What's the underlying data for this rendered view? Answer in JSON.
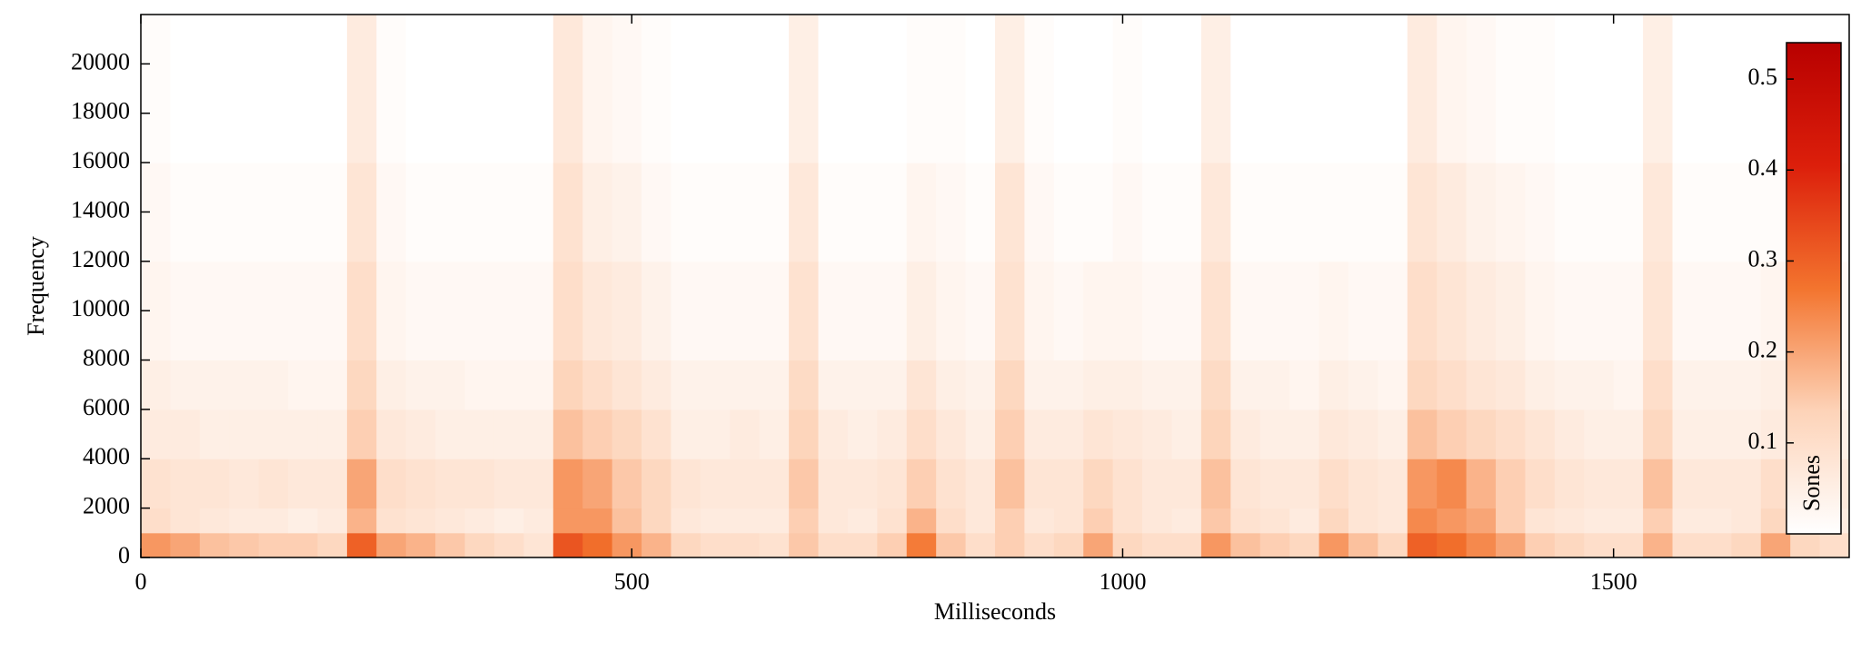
{
  "chart_data": {
    "type": "heatmap",
    "xlabel": "Milliseconds",
    "ylabel": "Frequency",
    "colorbar_label": "Sones",
    "xlim": [
      0,
      1740
    ],
    "ylim": [
      0,
      22000
    ],
    "clim": [
      0,
      0.54
    ],
    "xticks": [
      0,
      500,
      1000,
      1500
    ],
    "yticks": [
      0,
      2000,
      4000,
      6000,
      8000,
      10000,
      12000,
      14000,
      16000,
      18000,
      20000
    ],
    "colorbar_ticks": [
      0.1,
      0.2,
      0.3,
      0.4,
      0.5
    ],
    "colormap": [
      "#ffffff",
      "#fdd3b8",
      "#f3742e",
      "#dc1f0b",
      "#b80000"
    ],
    "x_bins": [
      0,
      30,
      60,
      90,
      120,
      150,
      180,
      210,
      240,
      270,
      300,
      330,
      360,
      390,
      420,
      450,
      480,
      510,
      540,
      570,
      600,
      630,
      660,
      690,
      720,
      750,
      780,
      810,
      840,
      870,
      900,
      930,
      960,
      990,
      1020,
      1050,
      1080,
      1110,
      1140,
      1170,
      1200,
      1230,
      1260,
      1290,
      1320,
      1350,
      1380,
      1410,
      1440,
      1470,
      1500,
      1530,
      1560,
      1590,
      1620,
      1650,
      1680,
      1710,
      1740
    ],
    "y_bins": [
      0,
      1000,
      2000,
      4000,
      6000,
      8000,
      12000,
      16000,
      22000
    ],
    "z": [
      [
        0.22,
        0.2,
        0.16,
        0.15,
        0.14,
        0.14,
        0.12,
        0.3,
        0.2,
        0.18,
        0.15,
        0.12,
        0.1,
        0.08,
        0.32,
        0.28,
        0.22,
        0.18,
        0.12,
        0.1,
        0.1,
        0.09,
        0.15,
        0.1,
        0.1,
        0.14,
        0.26,
        0.15,
        0.1,
        0.14,
        0.1,
        0.12,
        0.2,
        0.12,
        0.1,
        0.1,
        0.22,
        0.16,
        0.14,
        0.12,
        0.22,
        0.16,
        0.12,
        0.3,
        0.28,
        0.24,
        0.2,
        0.14,
        0.12,
        0.1,
        0.1,
        0.18,
        0.1,
        0.1,
        0.12,
        0.2,
        0.12,
        0.1
      ],
      [
        0.1,
        0.08,
        0.07,
        0.06,
        0.06,
        0.05,
        0.06,
        0.18,
        0.09,
        0.08,
        0.07,
        0.06,
        0.05,
        0.06,
        0.22,
        0.22,
        0.16,
        0.12,
        0.07,
        0.06,
        0.06,
        0.06,
        0.14,
        0.07,
        0.06,
        0.09,
        0.18,
        0.1,
        0.07,
        0.14,
        0.07,
        0.08,
        0.14,
        0.09,
        0.07,
        0.06,
        0.15,
        0.09,
        0.08,
        0.06,
        0.12,
        0.08,
        0.07,
        0.24,
        0.22,
        0.2,
        0.14,
        0.08,
        0.07,
        0.06,
        0.06,
        0.14,
        0.06,
        0.06,
        0.07,
        0.12,
        0.07,
        0.06
      ],
      [
        0.09,
        0.08,
        0.08,
        0.07,
        0.08,
        0.07,
        0.07,
        0.2,
        0.1,
        0.09,
        0.08,
        0.08,
        0.07,
        0.07,
        0.22,
        0.2,
        0.15,
        0.12,
        0.08,
        0.07,
        0.07,
        0.07,
        0.15,
        0.07,
        0.07,
        0.08,
        0.14,
        0.09,
        0.07,
        0.16,
        0.08,
        0.08,
        0.12,
        0.09,
        0.07,
        0.07,
        0.16,
        0.08,
        0.07,
        0.07,
        0.1,
        0.08,
        0.07,
        0.22,
        0.24,
        0.18,
        0.14,
        0.1,
        0.08,
        0.07,
        0.07,
        0.16,
        0.07,
        0.07,
        0.07,
        0.1,
        0.07,
        0.07
      ],
      [
        0.06,
        0.06,
        0.05,
        0.05,
        0.05,
        0.05,
        0.05,
        0.14,
        0.07,
        0.06,
        0.05,
        0.05,
        0.05,
        0.05,
        0.16,
        0.14,
        0.12,
        0.09,
        0.05,
        0.05,
        0.06,
        0.05,
        0.13,
        0.06,
        0.05,
        0.06,
        0.1,
        0.07,
        0.05,
        0.14,
        0.06,
        0.06,
        0.08,
        0.07,
        0.06,
        0.05,
        0.13,
        0.06,
        0.05,
        0.05,
        0.07,
        0.06,
        0.05,
        0.16,
        0.14,
        0.12,
        0.1,
        0.08,
        0.06,
        0.05,
        0.05,
        0.12,
        0.05,
        0.05,
        0.05,
        0.06,
        0.05,
        0.05
      ],
      [
        0.05,
        0.04,
        0.04,
        0.04,
        0.04,
        0.03,
        0.03,
        0.12,
        0.05,
        0.04,
        0.04,
        0.03,
        0.03,
        0.03,
        0.13,
        0.1,
        0.08,
        0.06,
        0.04,
        0.04,
        0.04,
        0.04,
        0.11,
        0.04,
        0.04,
        0.04,
        0.08,
        0.05,
        0.04,
        0.12,
        0.04,
        0.04,
        0.05,
        0.05,
        0.04,
        0.04,
        0.11,
        0.04,
        0.04,
        0.03,
        0.05,
        0.04,
        0.03,
        0.12,
        0.1,
        0.08,
        0.07,
        0.05,
        0.04,
        0.04,
        0.03,
        0.1,
        0.04,
        0.04,
        0.04,
        0.05,
        0.04,
        0.03
      ],
      [
        0.03,
        0.02,
        0.02,
        0.02,
        0.02,
        0.02,
        0.02,
        0.1,
        0.03,
        0.02,
        0.02,
        0.02,
        0.02,
        0.02,
        0.1,
        0.07,
        0.06,
        0.04,
        0.02,
        0.02,
        0.02,
        0.02,
        0.09,
        0.02,
        0.02,
        0.02,
        0.05,
        0.03,
        0.02,
        0.09,
        0.03,
        0.02,
        0.03,
        0.03,
        0.02,
        0.02,
        0.09,
        0.02,
        0.02,
        0.02,
        0.03,
        0.02,
        0.02,
        0.1,
        0.08,
        0.06,
        0.05,
        0.03,
        0.02,
        0.02,
        0.02,
        0.08,
        0.02,
        0.02,
        0.02,
        0.03,
        0.02,
        0.02
      ],
      [
        0.02,
        0.01,
        0.01,
        0.01,
        0.01,
        0.01,
        0.01,
        0.08,
        0.02,
        0.01,
        0.01,
        0.01,
        0.01,
        0.01,
        0.09,
        0.05,
        0.04,
        0.02,
        0.01,
        0.01,
        0.01,
        0.01,
        0.07,
        0.01,
        0.01,
        0.01,
        0.03,
        0.02,
        0.01,
        0.08,
        0.02,
        0.01,
        0.01,
        0.02,
        0.01,
        0.01,
        0.07,
        0.01,
        0.01,
        0.01,
        0.01,
        0.01,
        0.01,
        0.08,
        0.06,
        0.04,
        0.03,
        0.02,
        0.01,
        0.01,
        0.01,
        0.07,
        0.01,
        0.01,
        0.01,
        0.01,
        0.01,
        0.01
      ],
      [
        0.01,
        0,
        0,
        0,
        0,
        0,
        0,
        0.06,
        0.01,
        0,
        0,
        0,
        0,
        0,
        0.07,
        0.03,
        0.02,
        0.01,
        0,
        0,
        0,
        0,
        0.05,
        0,
        0,
        0,
        0.01,
        0.01,
        0,
        0.05,
        0.01,
        0,
        0,
        0.01,
        0,
        0,
        0.05,
        0,
        0,
        0,
        0,
        0,
        0,
        0.06,
        0.03,
        0.02,
        0.01,
        0.01,
        0,
        0,
        0,
        0.05,
        0,
        0,
        0,
        0,
        0,
        0
      ]
    ]
  }
}
